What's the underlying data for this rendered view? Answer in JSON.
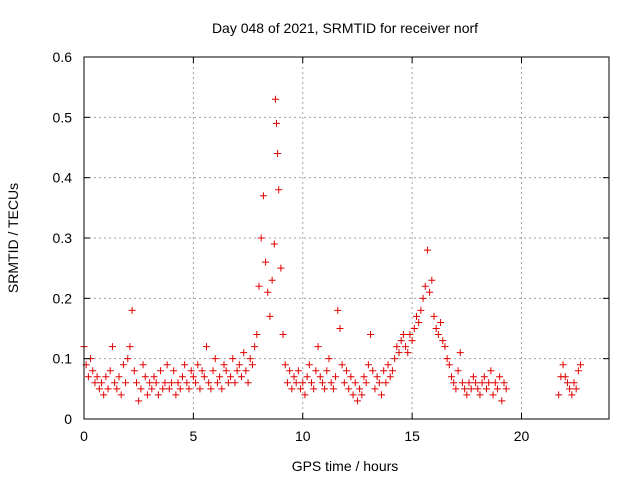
{
  "chart_data": {
    "type": "scatter",
    "title": "Day 048 of 2021, SRMTID for receiver norf",
    "xlabel": "GPS time / hours",
    "ylabel": "SRMTID / TECUs",
    "xlim": [
      0,
      24
    ],
    "ylim": [
      0,
      0.6
    ],
    "x_ticks": [
      0,
      5,
      10,
      15,
      20
    ],
    "y_ticks": [
      0,
      0.1,
      0.2,
      0.3,
      0.4,
      0.5,
      0.6
    ],
    "x_tick_labels": [
      "0",
      "5",
      "10",
      "15",
      "20"
    ],
    "y_tick_labels": [
      "0",
      "0.1",
      "0.2",
      "0.3",
      "0.4",
      "0.5",
      "0.6"
    ],
    "grid": true,
    "marker": "+",
    "color": "#e00000",
    "series": [
      {
        "name": "SRMTID",
        "x": [
          0.0,
          0.1,
          0.2,
          0.3,
          0.4,
          0.5,
          0.6,
          0.7,
          0.8,
          0.9,
          1.0,
          1.1,
          1.2,
          1.3,
          1.4,
          1.5,
          1.6,
          1.7,
          1.8,
          1.9,
          2.0,
          2.1,
          2.2,
          2.3,
          2.4,
          2.5,
          2.6,
          2.7,
          2.8,
          2.9,
          3.0,
          3.1,
          3.2,
          3.3,
          3.4,
          3.5,
          3.6,
          3.7,
          3.8,
          3.9,
          4.0,
          4.1,
          4.2,
          4.3,
          4.4,
          4.5,
          4.6,
          4.7,
          4.8,
          4.9,
          5.0,
          5.1,
          5.2,
          5.3,
          5.4,
          5.5,
          5.6,
          5.7,
          5.8,
          5.9,
          6.0,
          6.1,
          6.2,
          6.3,
          6.4,
          6.5,
          6.6,
          6.7,
          6.8,
          6.9,
          7.0,
          7.1,
          7.2,
          7.3,
          7.4,
          7.5,
          7.6,
          7.7,
          7.8,
          7.9,
          8.0,
          8.1,
          8.2,
          8.3,
          8.4,
          8.5,
          8.6,
          8.7,
          8.75,
          8.8,
          8.85,
          8.9,
          9.0,
          9.1,
          9.2,
          9.3,
          9.4,
          9.5,
          9.6,
          9.7,
          9.8,
          9.9,
          10.0,
          10.1,
          10.2,
          10.3,
          10.4,
          10.5,
          10.6,
          10.7,
          10.8,
          10.9,
          11.0,
          11.1,
          11.2,
          11.3,
          11.4,
          11.5,
          11.6,
          11.7,
          11.8,
          11.9,
          12.0,
          12.1,
          12.2,
          12.3,
          12.4,
          12.5,
          12.6,
          12.7,
          12.8,
          12.9,
          13.0,
          13.1,
          13.2,
          13.3,
          13.4,
          13.5,
          13.6,
          13.7,
          13.8,
          13.9,
          14.0,
          14.1,
          14.2,
          14.3,
          14.4,
          14.5,
          14.6,
          14.7,
          14.8,
          14.9,
          15.0,
          15.1,
          15.2,
          15.3,
          15.4,
          15.5,
          15.6,
          15.7,
          15.8,
          15.9,
          16.0,
          16.1,
          16.2,
          16.3,
          16.4,
          16.5,
          16.6,
          16.7,
          16.8,
          16.9,
          17.0,
          17.1,
          17.2,
          17.3,
          17.4,
          17.5,
          17.6,
          17.7,
          17.8,
          17.9,
          18.0,
          18.1,
          18.2,
          18.3,
          18.4,
          18.5,
          18.6,
          18.7,
          18.8,
          18.9,
          19.0,
          19.1,
          19.2,
          19.3,
          21.7,
          21.8,
          21.9,
          22.0,
          22.1,
          22.2,
          22.3,
          22.4,
          22.5,
          22.6,
          22.7
        ],
        "y": [
          0.12,
          0.09,
          0.07,
          0.1,
          0.08,
          0.06,
          0.07,
          0.05,
          0.06,
          0.04,
          0.07,
          0.05,
          0.08,
          0.12,
          0.06,
          0.05,
          0.07,
          0.04,
          0.09,
          0.06,
          0.1,
          0.12,
          0.18,
          0.08,
          0.06,
          0.03,
          0.05,
          0.09,
          0.07,
          0.04,
          0.06,
          0.05,
          0.07,
          0.06,
          0.04,
          0.08,
          0.05,
          0.06,
          0.09,
          0.05,
          0.06,
          0.08,
          0.04,
          0.06,
          0.05,
          0.07,
          0.09,
          0.06,
          0.05,
          0.08,
          0.07,
          0.06,
          0.09,
          0.05,
          0.08,
          0.07,
          0.12,
          0.06,
          0.05,
          0.08,
          0.1,
          0.06,
          0.07,
          0.05,
          0.09,
          0.08,
          0.06,
          0.07,
          0.1,
          0.06,
          0.08,
          0.09,
          0.07,
          0.11,
          0.08,
          0.06,
          0.1,
          0.09,
          0.12,
          0.14,
          0.22,
          0.3,
          0.37,
          0.26,
          0.21,
          0.17,
          0.23,
          0.29,
          0.53,
          0.49,
          0.44,
          0.38,
          0.25,
          0.14,
          0.09,
          0.06,
          0.08,
          0.05,
          0.07,
          0.06,
          0.08,
          0.05,
          0.06,
          0.04,
          0.07,
          0.09,
          0.06,
          0.05,
          0.08,
          0.12,
          0.07,
          0.06,
          0.05,
          0.08,
          0.1,
          0.06,
          0.05,
          0.07,
          0.18,
          0.15,
          0.09,
          0.06,
          0.08,
          0.05,
          0.07,
          0.04,
          0.06,
          0.03,
          0.05,
          0.04,
          0.07,
          0.06,
          0.09,
          0.14,
          0.08,
          0.05,
          0.07,
          0.06,
          0.04,
          0.08,
          0.06,
          0.09,
          0.07,
          0.08,
          0.1,
          0.12,
          0.11,
          0.13,
          0.14,
          0.12,
          0.11,
          0.14,
          0.13,
          0.15,
          0.17,
          0.16,
          0.18,
          0.2,
          0.22,
          0.28,
          0.21,
          0.23,
          0.17,
          0.15,
          0.14,
          0.16,
          0.13,
          0.12,
          0.1,
          0.09,
          0.07,
          0.06,
          0.05,
          0.08,
          0.11,
          0.06,
          0.05,
          0.04,
          0.06,
          0.05,
          0.07,
          0.06,
          0.05,
          0.04,
          0.06,
          0.07,
          0.05,
          0.06,
          0.08,
          0.04,
          0.06,
          0.05,
          0.07,
          0.03,
          0.06,
          0.05,
          0.04,
          0.07,
          0.09,
          0.07,
          0.06,
          0.05,
          0.04,
          0.06,
          0.05,
          0.08,
          0.09
        ]
      }
    ]
  }
}
